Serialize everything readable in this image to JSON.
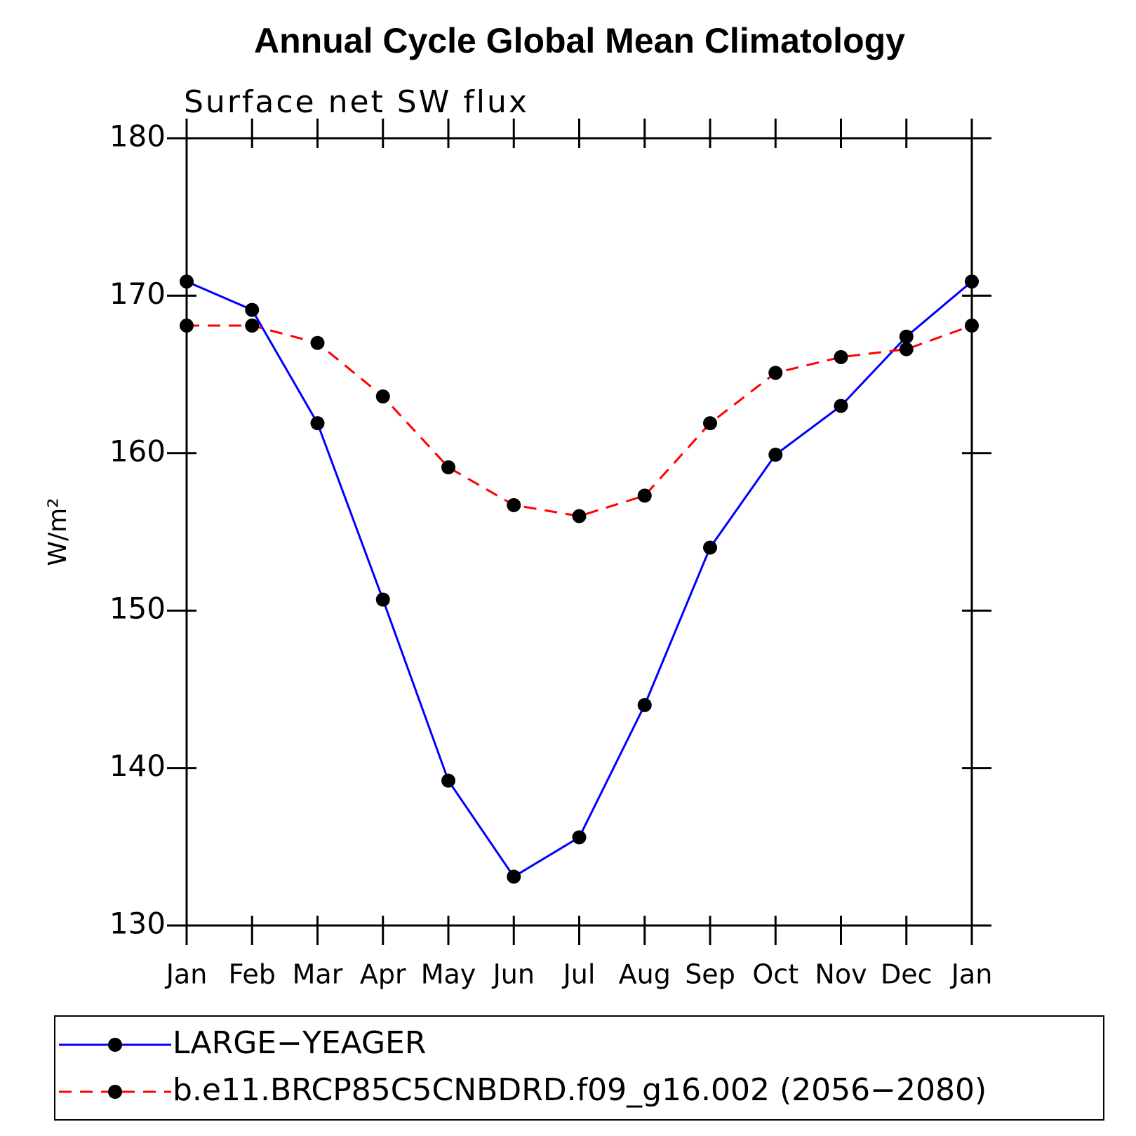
{
  "chart_data": {
    "type": "line",
    "title": "Annual Cycle Global Mean Climatology",
    "subtitle": "Surface net SW flux",
    "y_label": "W/m²",
    "categories": [
      "Jan",
      "Feb",
      "Mar",
      "Apr",
      "May",
      "Jun",
      "Jul",
      "Aug",
      "Sep",
      "Oct",
      "Nov",
      "Dec",
      "Jan"
    ],
    "series": [
      {
        "name": "LARGE−YEAGER",
        "color": "#0000ff",
        "dash": "solid",
        "values": [
          170.9,
          169.1,
          161.9,
          150.7,
          139.2,
          133.1,
          135.6,
          144.0,
          154.0,
          159.9,
          163.0,
          167.4,
          170.9
        ]
      },
      {
        "name": "b.e11.BRCP85C5CNBDRD.f09_g16.002 (2056−2080)",
        "color": "#ff0000",
        "dash": "dashed",
        "values": [
          168.1,
          168.1,
          167.0,
          163.6,
          159.1,
          156.7,
          156.0,
          157.3,
          161.9,
          165.1,
          166.1,
          166.6,
          168.1
        ]
      }
    ],
    "ylim": [
      130,
      180
    ],
    "yticks": [
      130,
      140,
      150,
      160,
      170,
      180
    ],
    "grid": false
  }
}
